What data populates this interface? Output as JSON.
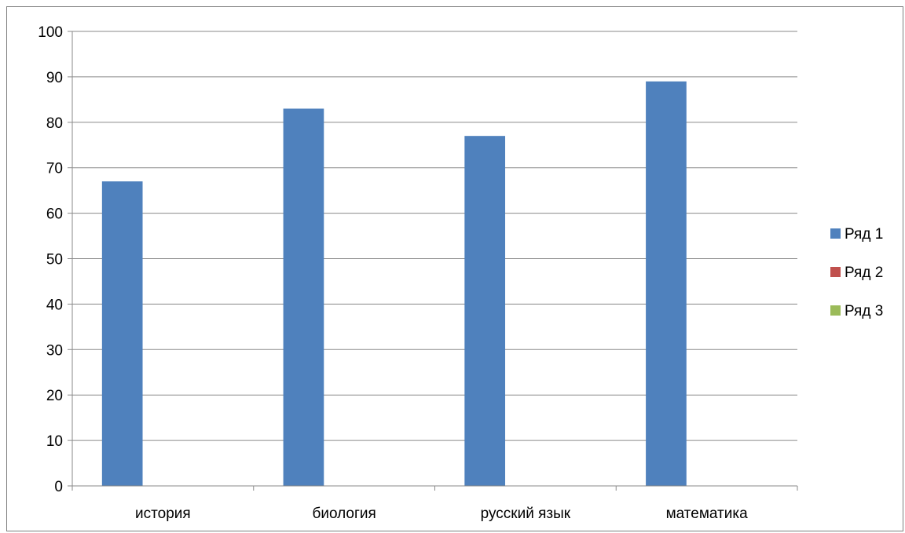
{
  "chart_data": {
    "type": "bar",
    "categories": [
      "история",
      "биология",
      "русский язык",
      "математика"
    ],
    "series": [
      {
        "name": "Ряд 1",
        "values": [
          67,
          83,
          77,
          89
        ],
        "color": "#4f81bd"
      },
      {
        "name": "Ряд 2",
        "values": [
          null,
          null,
          null,
          null
        ],
        "color": "#c0504d"
      },
      {
        "name": "Ряд 3",
        "values": [
          null,
          null,
          null,
          null
        ],
        "color": "#9bbb59"
      }
    ],
    "ylim": [
      0,
      100
    ],
    "yticks": [
      0,
      10,
      20,
      30,
      40,
      50,
      60,
      70,
      80,
      90,
      100
    ],
    "grid": true,
    "legend_position": "right"
  }
}
